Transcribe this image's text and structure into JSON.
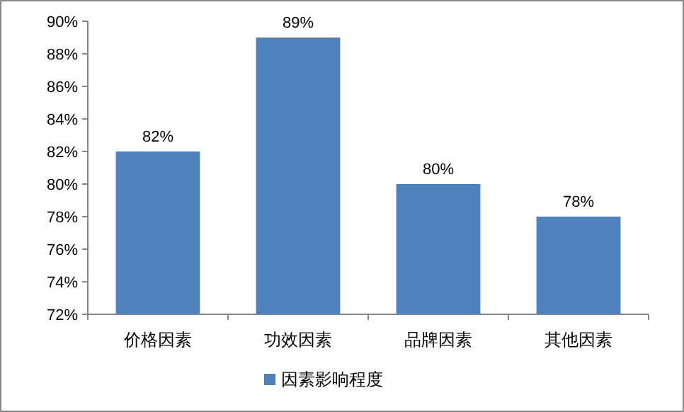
{
  "chart_data": {
    "type": "bar",
    "categories": [
      "价格因素",
      "功效因素",
      "品牌因素",
      "其他因素"
    ],
    "series": [
      {
        "name": "因素影响程度",
        "color": "#4f81bd",
        "values": [
          82,
          89,
          80,
          78
        ],
        "value_labels": [
          "82%",
          "89%",
          "80%",
          "78%"
        ]
      }
    ],
    "ylim": [
      72,
      90
    ],
    "yticks": [
      {
        "value": 72,
        "label": "72%"
      },
      {
        "value": 74,
        "label": "74%"
      },
      {
        "value": 76,
        "label": "76%"
      },
      {
        "value": 78,
        "label": "78%"
      },
      {
        "value": 80,
        "label": "80%"
      },
      {
        "value": 82,
        "label": "82%"
      },
      {
        "value": 84,
        "label": "84%"
      },
      {
        "value": 86,
        "label": "86%"
      },
      {
        "value": 88,
        "label": "88%"
      },
      {
        "value": 90,
        "label": "90%"
      }
    ],
    "grid": false,
    "legend": "bottom"
  }
}
